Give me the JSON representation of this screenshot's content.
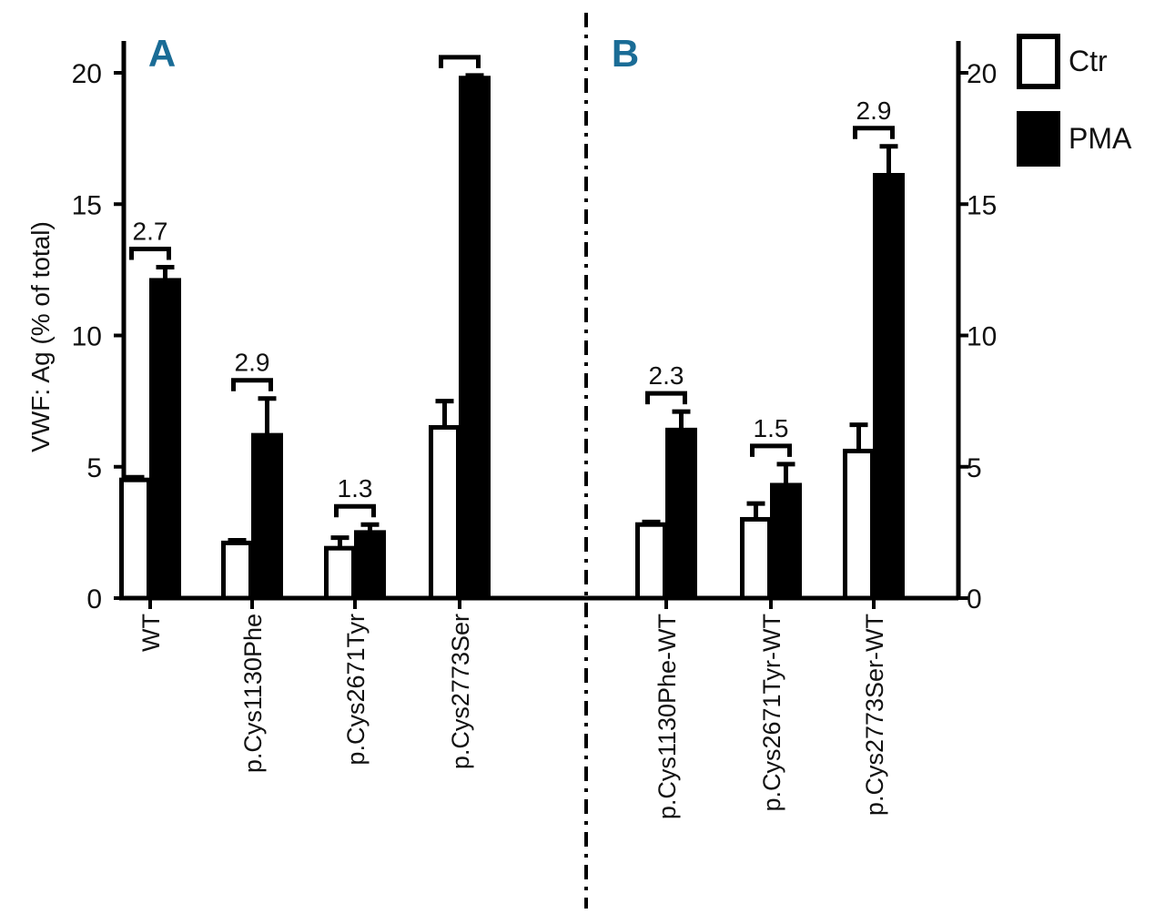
{
  "chart_data": {
    "type": "bar",
    "ylabel": "VWF: Ag (% of total)",
    "ylim": [
      0,
      20
    ],
    "yticks": [
      "0",
      "5",
      "10",
      "15",
      "20"
    ],
    "panels": [
      {
        "label": "A",
        "categories": [
          "WT",
          "p.Cys1130Phe",
          "p.Cys2671Tyr",
          "p.Cys2773Ser"
        ],
        "series": [
          {
            "name": "Ctr",
            "values": [
              4.5,
              2.1,
              1.9,
              6.5
            ],
            "errors": [
              0.1,
              0.1,
              0.4,
              1.0
            ]
          },
          {
            "name": "PMA",
            "values": [
              12.1,
              6.2,
              2.5,
              19.8
            ],
            "errors": [
              0.5,
              1.4,
              0.3,
              0.1
            ]
          }
        ],
        "ratios": [
          "2.7",
          "2.9",
          "1.3",
          ""
        ]
      },
      {
        "label": "B",
        "categories": [
          "p.Cys1130Phe-WT",
          "p.Cys2671Tyr-WT",
          "p.Cys2773Ser-WT"
        ],
        "series": [
          {
            "name": "Ctr",
            "values": [
              2.8,
              3.0,
              5.6
            ],
            "errors": [
              0.1,
              0.6,
              1.0
            ]
          },
          {
            "name": "PMA",
            "values": [
              6.4,
              4.3,
              16.1
            ],
            "errors": [
              0.7,
              0.8,
              1.1
            ]
          }
        ],
        "ratios": [
          "2.3",
          "1.5",
          "2.9"
        ]
      }
    ],
    "legend": {
      "placement": "top-right",
      "items": [
        {
          "name": "Ctr",
          "fill": "#ffffff"
        },
        {
          "name": "PMA",
          "fill": "#000000"
        }
      ]
    },
    "grid": false
  },
  "colors": {
    "panel_letter": "#1a6c96",
    "bar_edge": "#000000"
  }
}
